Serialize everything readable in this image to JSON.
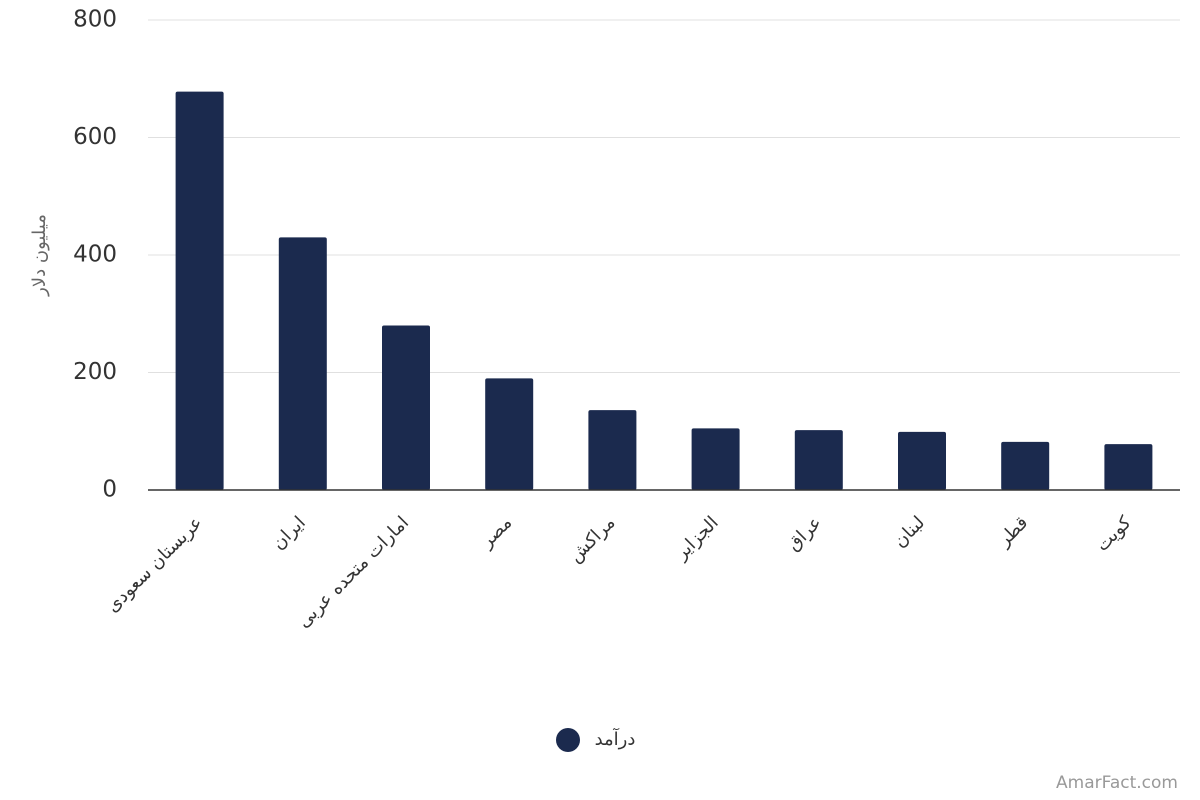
{
  "chart_data": {
    "type": "bar",
    "y_label": "میلیون دلار",
    "categories": [
      "عربستان سعودی",
      "ایران",
      "امارات متحده عربی",
      "مصر",
      "مراکش",
      "الجزایر",
      "عراق",
      "لبنان",
      "قطر",
      "کویت"
    ],
    "series": [
      {
        "name": "درآمد",
        "color": "#1b2a4e",
        "values": [
          678,
          430,
          280,
          190,
          136,
          105,
          102,
          99,
          82,
          78
        ]
      }
    ],
    "ylim": [
      0,
      800
    ],
    "yticks": [
      0,
      200,
      400,
      600,
      800
    ],
    "grid": true,
    "watermark": "AmarFact.com"
  }
}
